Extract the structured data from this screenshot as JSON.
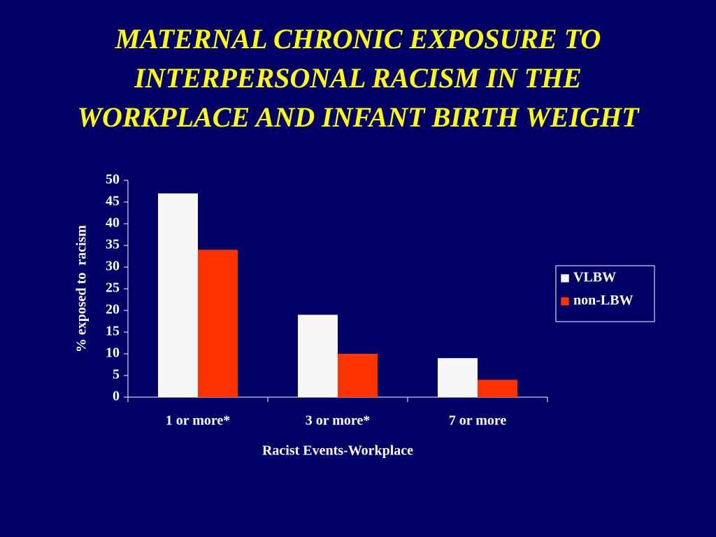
{
  "chart_data": {
    "type": "bar",
    "title": "MATERNAL CHRONIC EXPOSURE TO INTERPERSONAL RACISM IN THE WORKPLACE AND INFANT BIRTH WEIGHT",
    "x_label": "Racist Events-Workplace",
    "y_label": "% exposed to  racism",
    "categories": [
      "1 or more*",
      "3 or more*",
      "7 or more"
    ],
    "series": [
      {
        "name": "VLBW",
        "color": "#f8f8f8",
        "values": [
          47,
          19,
          9
        ]
      },
      {
        "name": "non-LBW",
        "color": "#ff3300",
        "values": [
          34,
          10,
          4
        ]
      }
    ],
    "ylim": [
      0,
      50
    ],
    "yticks": [
      0,
      5,
      10,
      15,
      20,
      25,
      30,
      35,
      40,
      45,
      50
    ],
    "legend": "right"
  }
}
